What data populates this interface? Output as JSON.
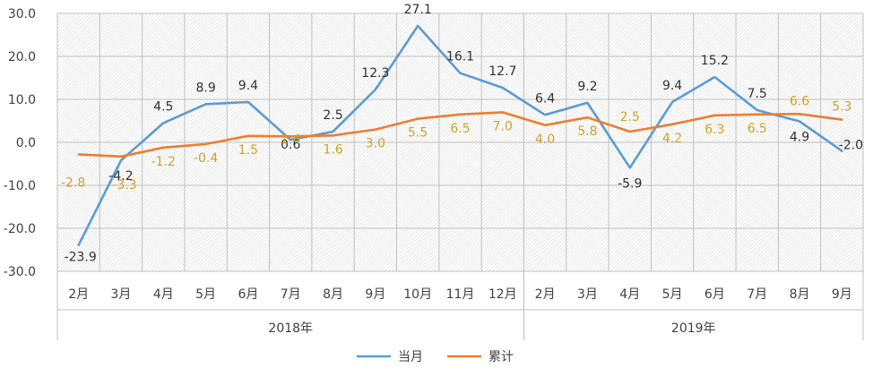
{
  "chart_data": {
    "type": "line",
    "ylim": [
      -30,
      30
    ],
    "yticks": [
      "30.0",
      "20.0",
      "10.0",
      "0.0",
      "-10.0",
      "-20.0",
      "-30.0"
    ],
    "ytick_values": [
      30,
      20,
      10,
      0,
      -10,
      -20,
      -30
    ],
    "categories": [
      "2月",
      "3月",
      "4月",
      "5月",
      "6月",
      "7月",
      "8月",
      "9月",
      "10月",
      "11月",
      "12月",
      "2月",
      "3月",
      "4月",
      "5月",
      "6月",
      "7月",
      "8月",
      "9月"
    ],
    "groups": [
      {
        "label": "2018年",
        "count": 11
      },
      {
        "label": "2019年",
        "count": 8
      }
    ],
    "grid": true,
    "legend_position": "bottom",
    "series": [
      {
        "name": "当月",
        "color": "#5b9bd5",
        "values": [
          -23.9,
          -4.2,
          4.5,
          8.9,
          9.4,
          0.6,
          2.5,
          12.3,
          27.1,
          16.1,
          12.7,
          6.4,
          9.2,
          -5.9,
          9.4,
          15.2,
          7.5,
          4.9,
          -2.0
        ],
        "labels": [
          "-23.9",
          "-4.2",
          "4.5",
          "8.9",
          "9.4",
          "0.6",
          "2.5",
          "12.3",
          "27.1",
          "16.1",
          "12.7",
          "6.4",
          "9.2",
          "-5.9",
          "9.4",
          "15.2",
          "7.5",
          "4.9",
          "-2.0"
        ]
      },
      {
        "name": "累计",
        "color": "#ed7d31",
        "label_color": "#c9a227",
        "values": [
          -2.8,
          -3.3,
          -1.2,
          -0.4,
          1.5,
          1.4,
          1.6,
          3.0,
          5.5,
          6.5,
          7.0,
          4.0,
          5.8,
          2.5,
          4.2,
          6.3,
          6.5,
          6.6,
          5.3
        ],
        "labels": [
          "-2.8",
          "-3.3",
          "-1.2",
          "-0.4",
          "1.5",
          "1.4",
          "1.6",
          "3.0",
          "5.5",
          "6.5",
          "7.0",
          "4.0",
          "5.8",
          "2.5",
          "4.2",
          "6.3",
          "6.5",
          "6.6",
          "5.3"
        ]
      }
    ]
  }
}
